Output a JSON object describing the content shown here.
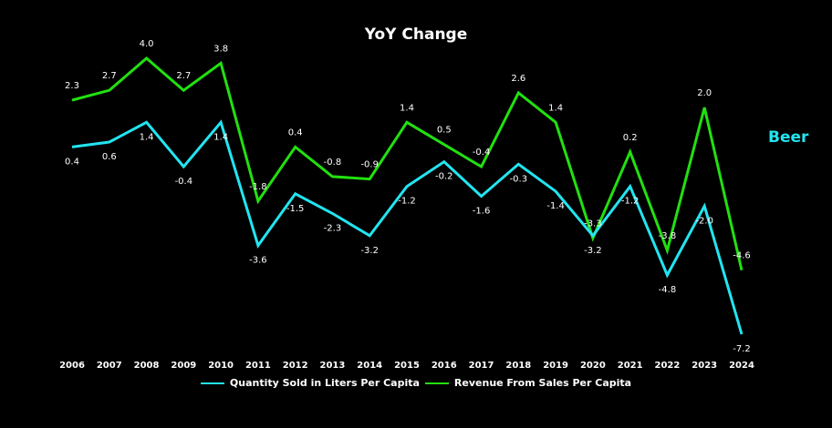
{
  "chart_data": {
    "type": "line",
    "title": "YoY Change",
    "side_label": "Beer",
    "categories": [
      "2006",
      "2007",
      "2008",
      "2009",
      "2010",
      "2011",
      "2012",
      "2013",
      "2014",
      "2015",
      "2016",
      "2017",
      "2018",
      "2019",
      "2020",
      "2021",
      "2022",
      "2023",
      "2024"
    ],
    "series": [
      {
        "name": "Quantity Sold in Liters Per Capita",
        "color": "#22e5f0",
        "values": [
          0.4,
          0.6,
          1.4,
          -0.4,
          1.4,
          -3.6,
          -1.5,
          -2.3,
          -3.2,
          -1.2,
          -0.2,
          -1.6,
          -0.3,
          -1.4,
          -3.2,
          -1.2,
          -4.8,
          -2.0,
          -7.2
        ],
        "labels": [
          "0.4",
          "0.6",
          "1.4",
          "-0.4",
          "1.4",
          "-3.6",
          "-1.5",
          "-2.3",
          "-3.2",
          "-1.2",
          "-0.2",
          "-1.6",
          "-0.3",
          "-1.4",
          "-3.2",
          "-1.2",
          "-4.8",
          "-2.0",
          "-7.2"
        ]
      },
      {
        "name": "Revenue From Sales Per Capita",
        "color": "#22e010",
        "values": [
          2.3,
          2.7,
          4.0,
          2.7,
          3.8,
          -1.8,
          0.4,
          -0.8,
          -0.9,
          1.4,
          0.5,
          -0.4,
          2.6,
          1.4,
          -3.3,
          0.2,
          -3.8,
          2.0,
          -4.6
        ],
        "labels": [
          "2.3",
          "2.7",
          "4.0",
          "2.7",
          "3.8",
          "-1.8",
          "0.4",
          "-0.8",
          "-0.9",
          "1.4",
          "0.5",
          "-0.4",
          "2.6",
          "1.4",
          "-3.3",
          "0.2",
          "-3.8",
          "2.0",
          "-4.6"
        ]
      }
    ],
    "ylim": [
      -7.2,
      4.0
    ],
    "grid": false,
    "legend": "bottom-center"
  }
}
